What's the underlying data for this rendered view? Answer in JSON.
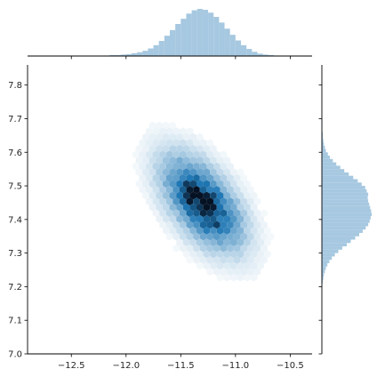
{
  "chart_data": {
    "type": "jointplot-hexbin",
    "title": "",
    "xlabel": "",
    "ylabel": "",
    "xlim": [
      -12.9,
      -10.3
    ],
    "ylim": [
      7.0,
      7.86
    ],
    "x_ticks": [
      -12.5,
      -12.0,
      -11.5,
      -11.0,
      -10.5
    ],
    "x_tick_labels": [
      "−12.5",
      "−12.0",
      "−11.5",
      "−11.0",
      "−10.5"
    ],
    "y_ticks": [
      7.0,
      7.1,
      7.2,
      7.3,
      7.4,
      7.5,
      7.6,
      7.7,
      7.8
    ],
    "y_tick_labels": [
      "7.0",
      "7.1",
      "7.2",
      "7.3",
      "7.4",
      "7.5",
      "7.6",
      "7.7",
      "7.8"
    ],
    "grid": false,
    "legend": "none",
    "hex_color": "#1f77b4",
    "marginal_color": "#a6c8e0",
    "joint_distribution": {
      "x_center": -11.3,
      "y_center": 7.45,
      "x_std": 0.21,
      "y_std": 0.08,
      "correlation": -0.55
    },
    "marginal_x": {
      "bin_centers": [
        -12.225,
        -12.175,
        -12.125,
        -12.075,
        -12.025,
        -11.975,
        -11.925,
        -11.875,
        -11.825,
        -11.775,
        -11.725,
        -11.675,
        -11.625,
        -11.575,
        -11.525,
        -11.475,
        -11.425,
        -11.375,
        -11.325,
        -11.275,
        -11.225,
        -11.175,
        -11.125,
        -11.075,
        -11.025,
        -10.975,
        -10.925,
        -10.875,
        -10.825,
        -10.775,
        -10.725,
        -10.675,
        -10.625,
        -10.575
      ],
      "relative_heights": [
        0.01,
        0.01,
        0.02,
        0.02,
        0.03,
        0.04,
        0.06,
        0.08,
        0.11,
        0.16,
        0.23,
        0.32,
        0.43,
        0.55,
        0.68,
        0.79,
        0.9,
        0.97,
        1.0,
        0.98,
        0.92,
        0.83,
        0.71,
        0.58,
        0.45,
        0.33,
        0.23,
        0.15,
        0.09,
        0.05,
        0.03,
        0.02,
        0.01,
        0.01
      ]
    },
    "marginal_y": {
      "bin_centers": [
        7.205,
        7.215,
        7.225,
        7.235,
        7.245,
        7.255,
        7.265,
        7.275,
        7.285,
        7.295,
        7.305,
        7.315,
        7.325,
        7.335,
        7.345,
        7.355,
        7.365,
        7.375,
        7.385,
        7.395,
        7.405,
        7.415,
        7.425,
        7.435,
        7.445,
        7.455,
        7.465,
        7.475,
        7.485,
        7.495,
        7.505,
        7.515,
        7.525,
        7.535,
        7.545,
        7.555,
        7.565,
        7.575,
        7.585,
        7.595,
        7.605,
        7.615,
        7.625,
        7.635,
        7.645,
        7.655,
        7.665,
        7.675,
        7.685,
        7.695
      ],
      "relative_heights": [
        0.01,
        0.02,
        0.03,
        0.04,
        0.06,
        0.08,
        0.11,
        0.15,
        0.2,
        0.26,
        0.33,
        0.41,
        0.5,
        0.58,
        0.67,
        0.75,
        0.82,
        0.88,
        0.93,
        0.96,
        0.98,
        1.0,
        0.99,
        0.97,
        0.95,
        0.93,
        0.92,
        0.93,
        0.9,
        0.87,
        0.8,
        0.72,
        0.63,
        0.54,
        0.45,
        0.37,
        0.29,
        0.22,
        0.16,
        0.12,
        0.08,
        0.06,
        0.04,
        0.03,
        0.02,
        0.02,
        0.01,
        0.01,
        0.01,
        0.01
      ]
    }
  }
}
